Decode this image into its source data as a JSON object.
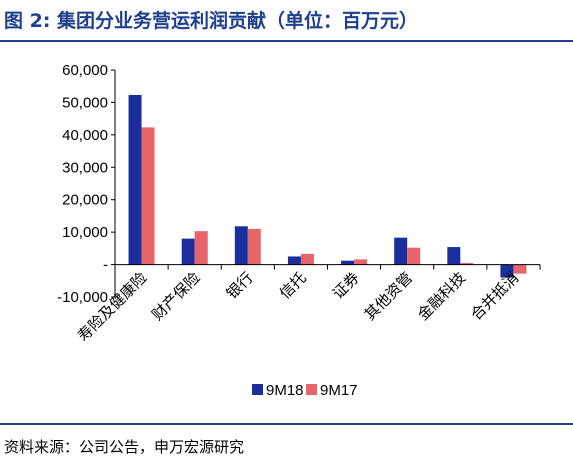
{
  "header": {
    "figure_title": "图 2:   集团分业务营运利润贡献（单位：百万元）"
  },
  "footer": {
    "source": "资料来源：公司公告，申万宏源研究"
  },
  "chart_data": {
    "type": "bar",
    "title": "集团分业务营运利润贡献（单位：百万元）",
    "categories": [
      "寿险及健康险",
      "财产保险",
      "银行",
      "信托",
      "证券",
      "其他资管",
      "金融科技",
      "合并抵消"
    ],
    "series": [
      {
        "name": "9M18",
        "color": "#1a2f9c",
        "values": [
          52300,
          8000,
          11800,
          2500,
          1200,
          8300,
          5400,
          -4000
        ]
      },
      {
        "name": "9M17",
        "color": "#e8656b",
        "values": [
          42300,
          10300,
          11000,
          3300,
          1600,
          5200,
          500,
          -2800
        ]
      }
    ],
    "yticks": [
      60000,
      50000,
      40000,
      30000,
      20000,
      10000,
      0,
      -10000
    ],
    "ytick_labels": [
      "60,000",
      "50,000",
      "40,000",
      "30,000",
      "20,000",
      "10,000",
      "-",
      "-10,000"
    ],
    "ylim": [
      -10000,
      60000
    ],
    "grid": false,
    "legend": "bottom"
  }
}
